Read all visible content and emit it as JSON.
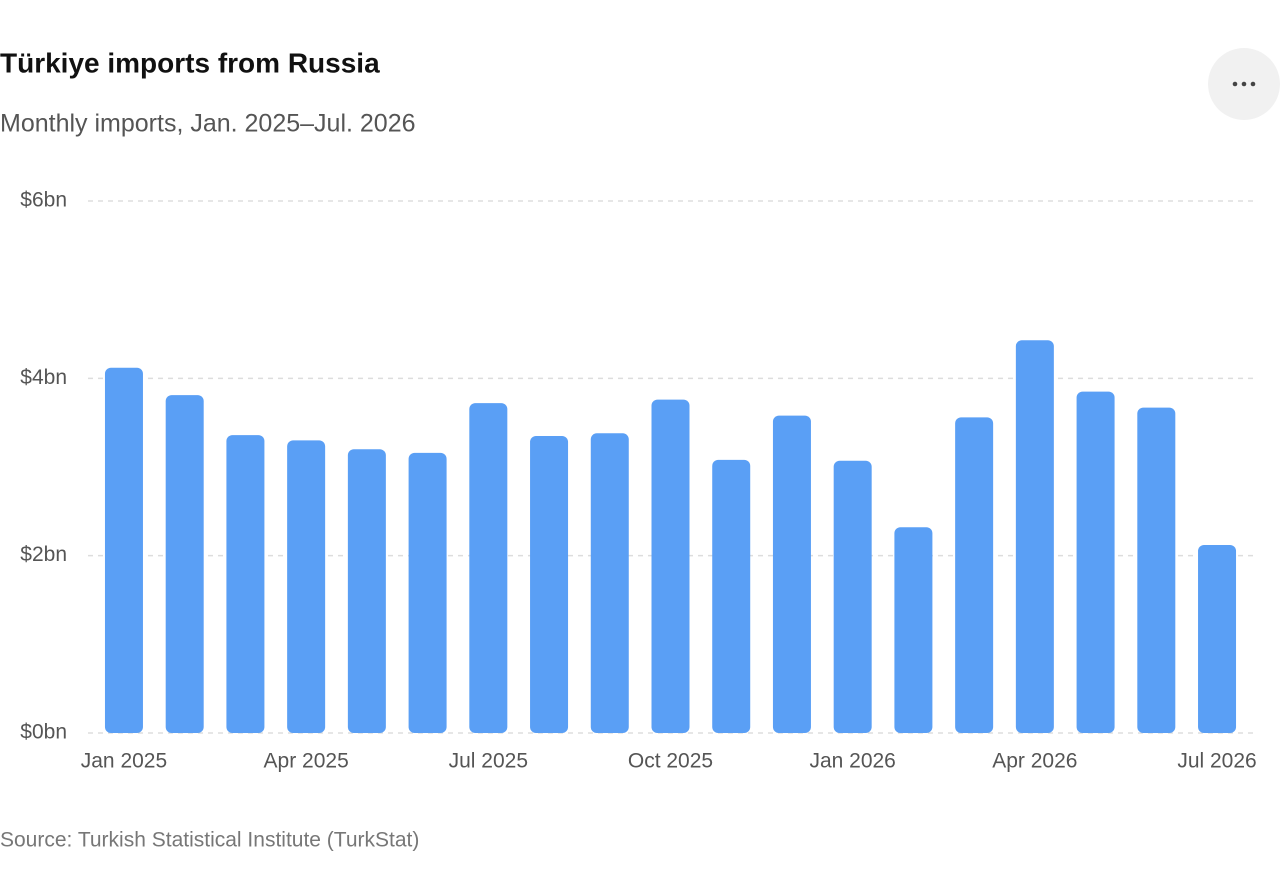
{
  "chart_data": {
    "type": "bar",
    "title": "Türkiye imports from Russia",
    "subtitle": "Monthly imports, Jan. 2025–Jul. 2026",
    "source": "Source: Turkish Statistical Institute (TurkStat)",
    "categories": [
      "Jan 2025",
      null,
      null,
      "Apr 2025",
      null,
      null,
      "Jul 2025",
      null,
      null,
      "Oct 2025",
      null,
      null,
      "Jan 2026",
      null,
      null,
      "Apr 2026",
      null,
      null,
      "Jul 2026"
    ],
    "values": [
      4.12,
      3.81,
      3.36,
      3.3,
      3.2,
      3.16,
      3.72,
      3.35,
      3.38,
      3.76,
      3.08,
      3.58,
      3.07,
      2.32,
      3.56,
      4.43,
      3.85,
      3.67,
      2.12
    ],
    "color": "#5a9ff5",
    "ylim": [
      0,
      6
    ],
    "yticks": [
      {
        "value": 0,
        "label": "$0bn"
      },
      {
        "value": 2,
        "label": "$2bn"
      },
      {
        "value": 4,
        "label": "$4bn"
      },
      {
        "value": 6,
        "label": "$6bn"
      }
    ],
    "grid": true
  }
}
